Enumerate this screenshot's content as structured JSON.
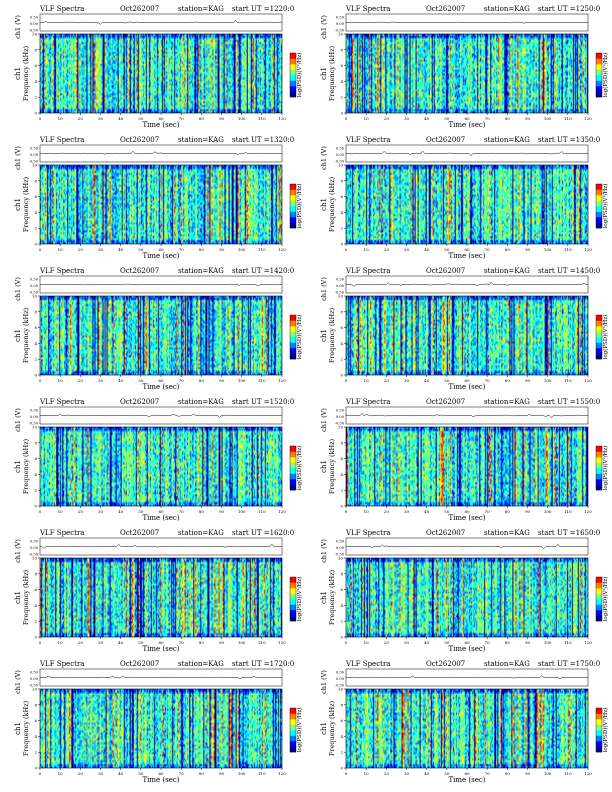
{
  "header": {
    "title": "VLF Spectra",
    "date": "Oct262007",
    "station_label": "station=KAG",
    "start_prefix": "start UT ="
  },
  "labels": {
    "ch1_axis": "ch1 (V)",
    "freq_axis_left": "ch1",
    "freq_axis_main": "Frequency (kHz)",
    "time_axis": "Time (sec)",
    "colorbar_label": "log(PSD)(V²/Hz)"
  },
  "colors": {
    "colormap": [
      "#00008f",
      "#0000ff",
      "#0080ff",
      "#00ffff",
      "#80ff80",
      "#ffff00",
      "#ff8000",
      "#ff0000"
    ],
    "background": "#ffffff"
  },
  "chart_data": [
    {
      "type": "heatmap",
      "title": "VLF Spectra",
      "start_ut": "1220:0",
      "station": "KAG",
      "date": "Oct262007",
      "xlabel": "Time (sec)",
      "ylabel": "Frequency (kHz)",
      "xlim": [
        0,
        120
      ],
      "ylim": [
        0,
        10
      ],
      "ch1_ylim": [
        -0.5,
        0.5
      ],
      "x_ticks": [
        0,
        10,
        20,
        30,
        40,
        50,
        60,
        70,
        80,
        90,
        100,
        110,
        120
      ],
      "y_ticks": [
        0,
        2,
        4,
        6,
        8,
        10
      ],
      "ch1_ticks": [
        "0.50",
        "0.00",
        "-0.50"
      ]
    },
    {
      "type": "heatmap",
      "title": "VLF Spectra",
      "start_ut": "1250:0",
      "station": "KAG",
      "date": "Oct262007",
      "xlabel": "Time (sec)",
      "ylabel": "Frequency (kHz)",
      "xlim": [
        0,
        120
      ],
      "ylim": [
        0,
        10
      ],
      "ch1_ylim": [
        -0.5,
        0.5
      ],
      "x_ticks": [
        0,
        10,
        20,
        30,
        40,
        50,
        60,
        70,
        80,
        90,
        100,
        110,
        120
      ],
      "y_ticks": [
        0,
        2,
        4,
        6,
        8,
        10
      ],
      "ch1_ticks": [
        "0.50",
        "0.00",
        "-0.50"
      ]
    },
    {
      "type": "heatmap",
      "title": "VLF Spectra",
      "start_ut": "1320:0",
      "station": "KAG",
      "date": "Oct262007",
      "xlabel": "Time (sec)",
      "ylabel": "Frequency (kHz)",
      "xlim": [
        0,
        120
      ],
      "ylim": [
        0,
        10
      ],
      "ch1_ylim": [
        -0.5,
        0.5
      ],
      "x_ticks": [
        0,
        10,
        20,
        30,
        40,
        50,
        60,
        70,
        80,
        90,
        100,
        110,
        120
      ],
      "y_ticks": [
        0,
        2,
        4,
        6,
        8,
        10
      ],
      "ch1_ticks": [
        "0.50",
        "0.00",
        "-0.50"
      ]
    },
    {
      "type": "heatmap",
      "title": "VLF Spectra",
      "start_ut": "1350:0",
      "station": "KAG",
      "date": "Oct262007",
      "xlabel": "Time (sec)",
      "ylabel": "Frequency (kHz)",
      "xlim": [
        0,
        120
      ],
      "ylim": [
        0,
        10
      ],
      "ch1_ylim": [
        -0.5,
        0.5
      ],
      "x_ticks": [
        0,
        10,
        20,
        30,
        40,
        50,
        60,
        70,
        80,
        90,
        100,
        110,
        120
      ],
      "y_ticks": [
        0,
        2,
        4,
        6,
        8,
        10
      ],
      "ch1_ticks": [
        "0.50",
        "0.00",
        "-0.50"
      ]
    },
    {
      "type": "heatmap",
      "title": "VLF Spectra",
      "start_ut": "1420:0",
      "station": "KAG",
      "date": "Oct262007",
      "xlabel": "Time (sec)",
      "ylabel": "Frequency (kHz)",
      "xlim": [
        0,
        120
      ],
      "ylim": [
        0,
        10
      ],
      "ch1_ylim": [
        -0.5,
        0.5
      ],
      "x_ticks": [
        0,
        10,
        20,
        30,
        40,
        50,
        60,
        70,
        80,
        90,
        100,
        110,
        120
      ],
      "y_ticks": [
        0,
        2,
        4,
        6,
        8,
        10
      ],
      "ch1_ticks": [
        "0.50",
        "0.00",
        "-0.50"
      ]
    },
    {
      "type": "heatmap",
      "title": "VLF Spectra",
      "start_ut": "1450:0",
      "station": "KAG",
      "date": "Oct262007",
      "xlabel": "Time (sec)",
      "ylabel": "Frequency (kHz)",
      "xlim": [
        0,
        120
      ],
      "ylim": [
        0,
        10
      ],
      "ch1_ylim": [
        -0.5,
        0.5
      ],
      "x_ticks": [
        0,
        10,
        20,
        30,
        40,
        50,
        60,
        70,
        80,
        90,
        100,
        110,
        120
      ],
      "y_ticks": [
        0,
        2,
        4,
        6,
        8,
        10
      ],
      "ch1_ticks": [
        "0.50",
        "0.00",
        "-0.50"
      ]
    },
    {
      "type": "heatmap",
      "title": "VLF Spectra",
      "start_ut": "1520:0",
      "station": "KAG",
      "date": "Oct262007",
      "xlabel": "Time (sec)",
      "ylabel": "Frequency (kHz)",
      "xlim": [
        0,
        120
      ],
      "ylim": [
        0,
        10
      ],
      "ch1_ylim": [
        -0.5,
        0.5
      ],
      "x_ticks": [
        0,
        10,
        20,
        30,
        40,
        50,
        60,
        70,
        80,
        90,
        100,
        110,
        120
      ],
      "y_ticks": [
        0,
        2,
        4,
        6,
        8,
        10
      ],
      "ch1_ticks": [
        "0.50",
        "0.00",
        "-0.50"
      ]
    },
    {
      "type": "heatmap",
      "title": "VLF Spectra",
      "start_ut": "1550:0",
      "station": "KAG",
      "date": "Oct262007",
      "xlabel": "Time (sec)",
      "ylabel": "Frequency (kHz)",
      "xlim": [
        0,
        120
      ],
      "ylim": [
        0,
        10
      ],
      "ch1_ylim": [
        -0.5,
        0.5
      ],
      "x_ticks": [
        0,
        10,
        20,
        30,
        40,
        50,
        60,
        70,
        80,
        90,
        100,
        110,
        120
      ],
      "y_ticks": [
        0,
        2,
        4,
        6,
        8,
        10
      ],
      "ch1_ticks": [
        "0.50",
        "0.00",
        "-0.50"
      ]
    },
    {
      "type": "heatmap",
      "title": "VLF Spectra",
      "start_ut": "1620:0",
      "station": "KAG",
      "date": "Oct262007",
      "xlabel": "Time (sec)",
      "ylabel": "Frequency (kHz)",
      "xlim": [
        0,
        120
      ],
      "ylim": [
        0,
        10
      ],
      "ch1_ylim": [
        -0.5,
        0.5
      ],
      "x_ticks": [
        0,
        10,
        20,
        30,
        40,
        50,
        60,
        70,
        80,
        90,
        100,
        110,
        120
      ],
      "y_ticks": [
        0,
        2,
        4,
        6,
        8,
        10
      ],
      "ch1_ticks": [
        "0.50",
        "0.00",
        "-0.50"
      ]
    },
    {
      "type": "heatmap",
      "title": "VLF Spectra",
      "start_ut": "1650:0",
      "station": "KAG",
      "date": "Oct262007",
      "xlabel": "Time (sec)",
      "ylabel": "Frequency (kHz)",
      "xlim": [
        0,
        120
      ],
      "ylim": [
        0,
        10
      ],
      "ch1_ylim": [
        -0.5,
        0.5
      ],
      "x_ticks": [
        0,
        10,
        20,
        30,
        40,
        50,
        60,
        70,
        80,
        90,
        100,
        110,
        120
      ],
      "y_ticks": [
        0,
        2,
        4,
        6,
        8,
        10
      ],
      "ch1_ticks": [
        "0.50",
        "0.00",
        "-0.50"
      ]
    },
    {
      "type": "heatmap",
      "title": "VLF Spectra",
      "start_ut": "1720:0",
      "station": "KAG",
      "date": "Oct262007",
      "xlabel": "Time (sec)",
      "ylabel": "Frequency (kHz)",
      "xlim": [
        0,
        120
      ],
      "ylim": [
        0,
        10
      ],
      "ch1_ylim": [
        -0.5,
        0.5
      ],
      "x_ticks": [
        0,
        10,
        20,
        30,
        40,
        50,
        60,
        70,
        80,
        90,
        100,
        110,
        120
      ],
      "y_ticks": [
        0,
        2,
        4,
        6,
        8,
        10
      ],
      "ch1_ticks": [
        "0.50",
        "0.00",
        "-0.50"
      ]
    },
    {
      "type": "heatmap",
      "title": "VLF Spectra",
      "start_ut": "1750:0",
      "station": "KAG",
      "date": "Oct262007",
      "xlabel": "Time (sec)",
      "ylabel": "Frequency (kHz)",
      "xlim": [
        0,
        120
      ],
      "ylim": [
        0,
        10
      ],
      "ch1_ylim": [
        -0.5,
        0.5
      ],
      "x_ticks": [
        0,
        10,
        20,
        30,
        40,
        50,
        60,
        70,
        80,
        90,
        100,
        110,
        120
      ],
      "y_ticks": [
        0,
        2,
        4,
        6,
        8,
        10
      ],
      "ch1_ticks": [
        "0.50",
        "0.00",
        "-0.50"
      ]
    }
  ]
}
